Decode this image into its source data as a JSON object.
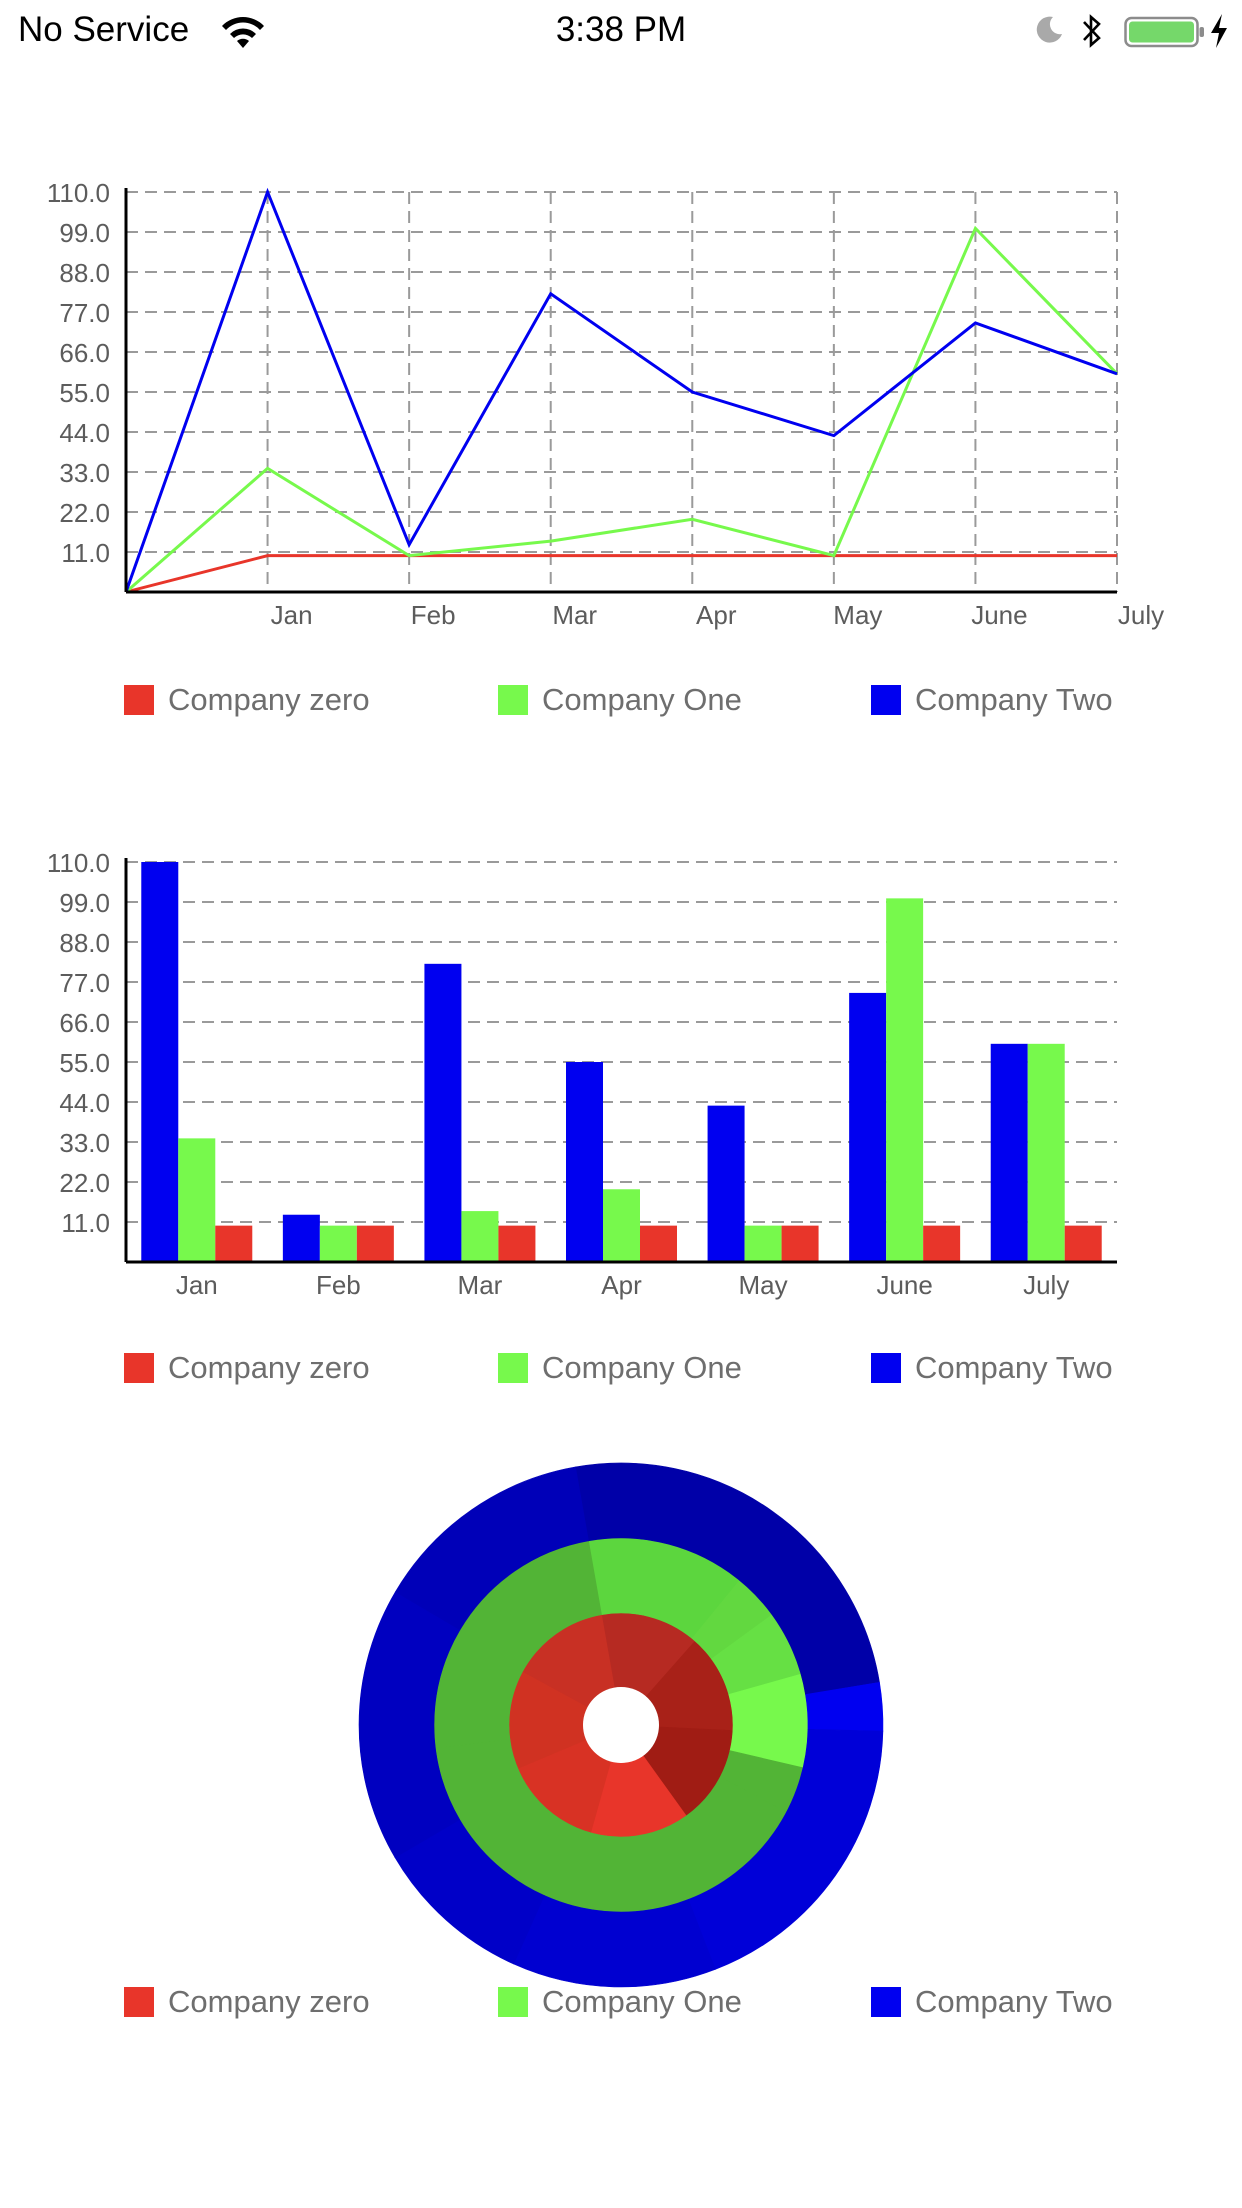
{
  "status_bar": {
    "carrier": "No Service",
    "time": "3:38 PM"
  },
  "colors": {
    "company_zero": "#e8352a",
    "company_one": "#77f94c",
    "company_two": "#0000f0"
  },
  "legend": [
    {
      "label": "Company zero",
      "color": "#e8352a"
    },
    {
      "label": "Company One",
      "color": "#77f94c"
    },
    {
      "label": "Company Two",
      "color": "#0000f0"
    }
  ],
  "chart_data": [
    {
      "type": "line",
      "x": [
        "",
        "Jan",
        "Feb",
        "Mar",
        "Apr",
        "May",
        "June",
        "July"
      ],
      "y_ticks": [
        "11.0",
        "22.0",
        "33.0",
        "44.0",
        "55.0",
        "66.0",
        "77.0",
        "88.0",
        "99.0",
        "110.0"
      ],
      "ylim": [
        0,
        110
      ],
      "grid": true,
      "legend_position": "bottom",
      "series": [
        {
          "name": "Company zero",
          "color": "#e8352a",
          "values": [
            0,
            10,
            10,
            10,
            10,
            10,
            10,
            10
          ]
        },
        {
          "name": "Company One",
          "color": "#77f94c",
          "values": [
            0,
            34,
            10,
            14,
            20,
            10,
            100,
            60
          ]
        },
        {
          "name": "Company Two",
          "color": "#0000f0",
          "values": [
            0,
            110,
            13,
            82,
            55,
            43,
            74,
            60
          ]
        }
      ]
    },
    {
      "type": "bar",
      "categories": [
        "Jan",
        "Feb",
        "Mar",
        "Apr",
        "May",
        "June",
        "July"
      ],
      "y_ticks": [
        "11.0",
        "22.0",
        "33.0",
        "44.0",
        "55.0",
        "66.0",
        "77.0",
        "88.0",
        "99.0",
        "110.0"
      ],
      "ylim": [
        0,
        110
      ],
      "grid": true,
      "legend_position": "bottom",
      "series": [
        {
          "name": "Company Two",
          "color": "#0000f0",
          "values": [
            110,
            13,
            82,
            55,
            43,
            74,
            60
          ]
        },
        {
          "name": "Company One",
          "color": "#77f94c",
          "values": [
            34,
            10,
            14,
            20,
            10,
            100,
            60
          ]
        },
        {
          "name": "Company zero",
          "color": "#e8352a",
          "values": [
            10,
            10,
            10,
            10,
            10,
            10,
            10
          ]
        }
      ]
    },
    {
      "type": "pie",
      "variant": "nested-donut",
      "legend_position": "bottom",
      "rings": [
        {
          "name": "Company zero",
          "values": [
            10,
            10,
            10,
            10,
            10,
            10,
            10
          ],
          "colors": [
            "#b62a22",
            "#a82118",
            "#a01c14",
            "#e8352a",
            "#d83224",
            "#d03222",
            "#c83024"
          ]
        },
        {
          "name": "Company One",
          "values": [
            34,
            10,
            14,
            20,
            10,
            100,
            60
          ],
          "colors": [
            "#5cd63e",
            "#62d840",
            "#66e044",
            "#77f94c",
            "#52b436",
            "#52b436",
            "#52b436"
          ]
        },
        {
          "name": "Company Two",
          "values": [
            110,
            13,
            82,
            55,
            43,
            74,
            60
          ],
          "colors": [
            "#0000a8",
            "#0000f0",
            "#0000d8",
            "#0000d0",
            "#0000c8",
            "#0000c0",
            "#0000b8"
          ]
        }
      ]
    }
  ]
}
